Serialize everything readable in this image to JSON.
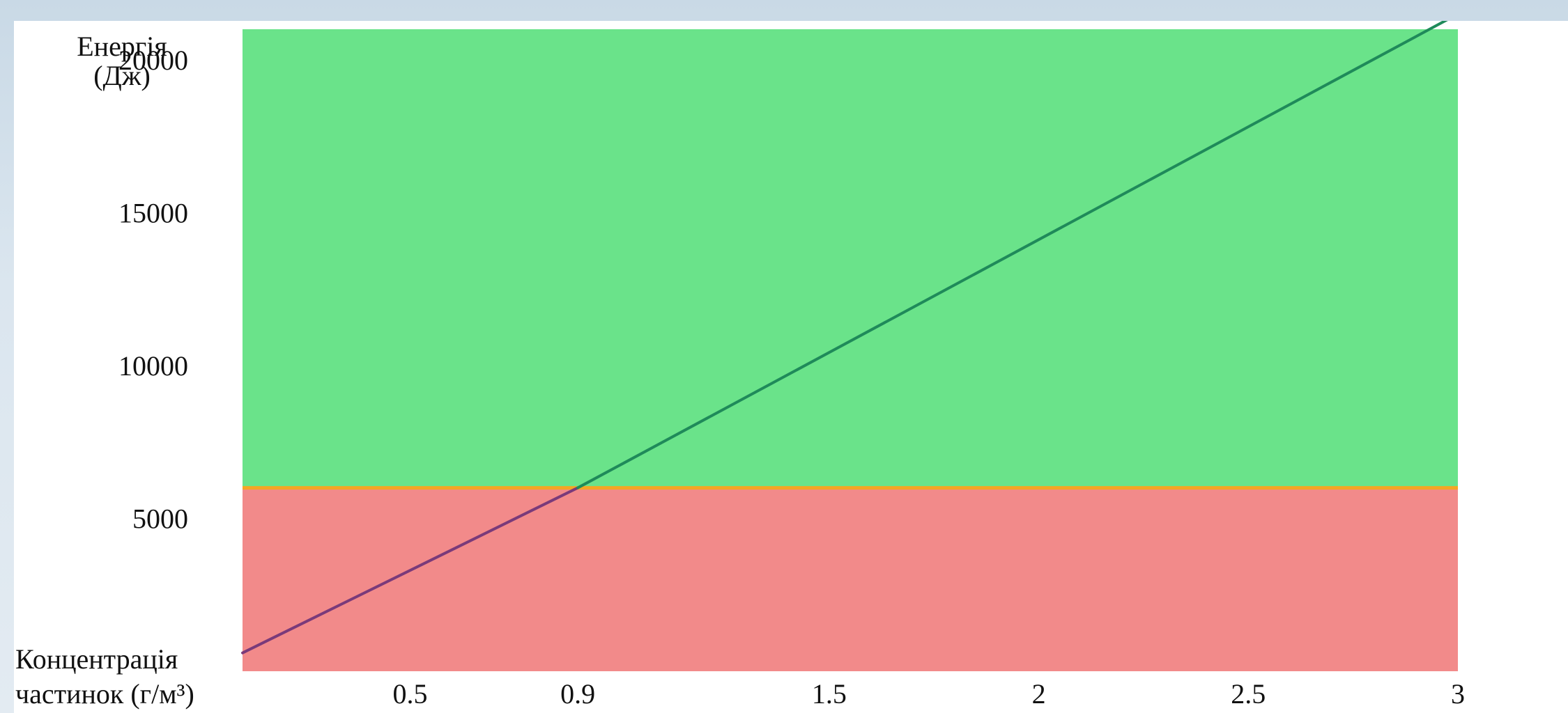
{
  "chart_data": {
    "type": "line",
    "ylabel": [
      "Енергія",
      "(Дж)"
    ],
    "xlabel": [
      "Концентрація",
      "частинок (г/м³)"
    ],
    "xlim": [
      0.1,
      3.0
    ],
    "ylim": [
      0,
      21000
    ],
    "x_ticks": [
      {
        "value": 0.5,
        "label": "0.5",
        "highlight": false
      },
      {
        "value": 0.9,
        "label": "0.9",
        "highlight": true
      },
      {
        "value": 1.5,
        "label": "1.5",
        "highlight": false
      },
      {
        "value": 2,
        "label": "2",
        "highlight": false
      },
      {
        "value": 2.5,
        "label": "2.5",
        "highlight": false
      },
      {
        "value": 3,
        "label": "3",
        "highlight": false
      }
    ],
    "y_ticks": [
      {
        "value": 5000,
        "label": "5000"
      },
      {
        "value": 10000,
        "label": "10000"
      },
      {
        "value": 15000,
        "label": "15000"
      },
      {
        "value": 20000,
        "label": "20000"
      }
    ],
    "threshold": 6000,
    "regions": [
      {
        "from": 0,
        "to": 6000,
        "color": "#f28a8a"
      },
      {
        "from": 6000,
        "to": 21000,
        "color": "#6ae38a"
      }
    ],
    "series": [
      {
        "points": [
          [
            0.1,
            600
          ],
          [
            0.9,
            6000
          ],
          [
            3.0,
            21500
          ]
        ],
        "colors": [
          "#7a3a7a",
          "#1f8a5a"
        ]
      }
    ],
    "threshold_color": "#f5a623",
    "highlight_color": "#e0202a"
  }
}
